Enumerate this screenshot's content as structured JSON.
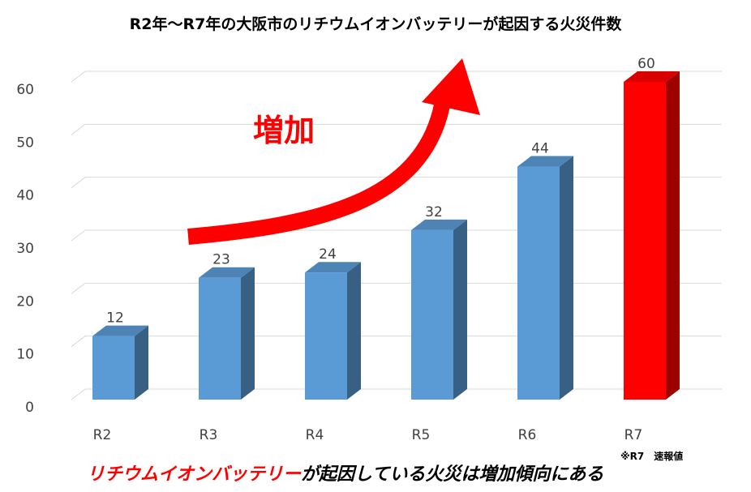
{
  "chart_data": {
    "type": "bar3d",
    "title": "R2年〜R7年の大阪市のリチウムイオンバッテリーが起因する火災件数",
    "categories": [
      "R2",
      "R3",
      "R4",
      "R5",
      "R6",
      "R7"
    ],
    "values": [
      12,
      23,
      24,
      32,
      44,
      60
    ],
    "colors": [
      "#5b9bd5",
      "#5b9bd5",
      "#5b9bd5",
      "#5b9bd5",
      "#5b9bd5",
      "#ff0000"
    ],
    "ylim": [
      0,
      60
    ],
    "yticks": [
      0,
      10,
      20,
      30,
      40,
      50,
      60
    ],
    "grid": true,
    "annotation": "増加",
    "footnote": "※R7　速報値",
    "caption": {
      "highlight": "リチウムイオンバッテリー",
      "text": "が起因している火災は増加傾向にある"
    }
  }
}
